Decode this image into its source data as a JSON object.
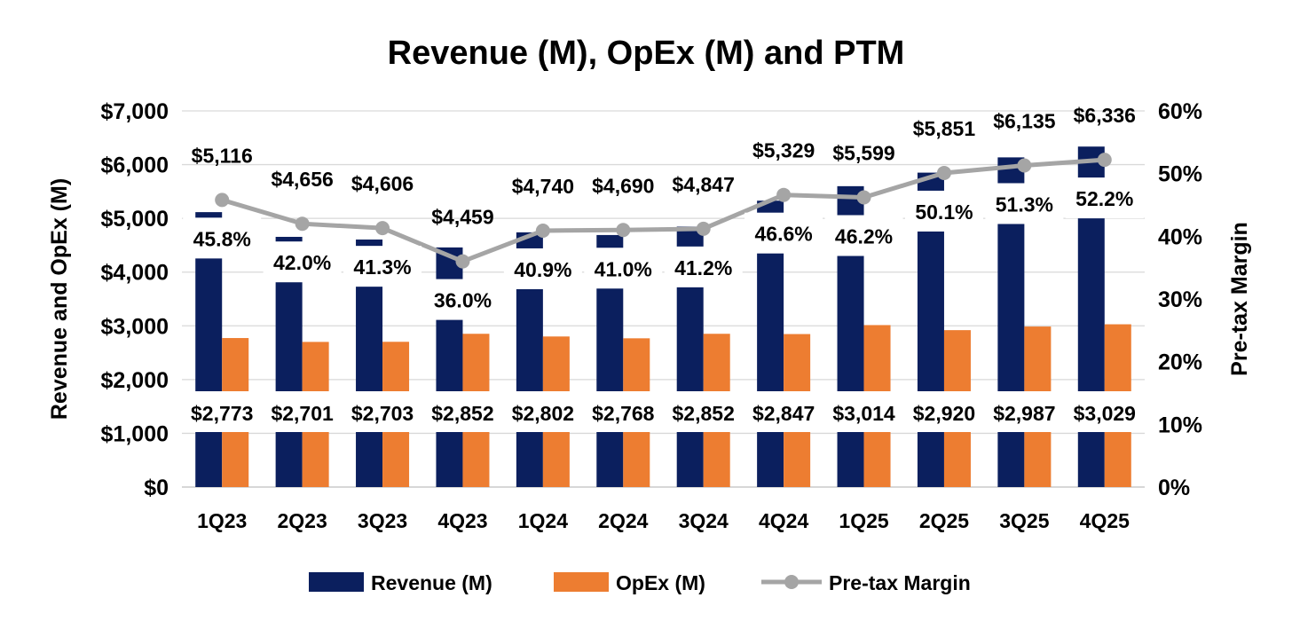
{
  "chart_data": {
    "type": "bar",
    "title": "Revenue (M), OpEx (M) and PTM",
    "ylabel": "Revenue and OpEx (M)",
    "y2label": "Pre-tax Margin",
    "ylim": [
      0,
      7000
    ],
    "y2lim": [
      0,
      60
    ],
    "yticks": [
      "$0",
      "$1,000",
      "$2,000",
      "$3,000",
      "$4,000",
      "$5,000",
      "$6,000",
      "$7,000"
    ],
    "y2ticks": [
      "0%",
      "10%",
      "20%",
      "30%",
      "40%",
      "50%",
      "60%"
    ],
    "grid": true,
    "legend_position": "bottom",
    "categories": [
      "1Q23",
      "2Q23",
      "3Q23",
      "4Q23",
      "1Q24",
      "2Q24",
      "3Q24",
      "4Q24",
      "1Q25",
      "2Q25",
      "3Q25",
      "4Q25"
    ],
    "series": [
      {
        "name": "Revenue (M)",
        "kind": "bar",
        "color": "#0B1F5E",
        "values": [
          5116,
          4656,
          4606,
          4459,
          4740,
          4690,
          4847,
          5329,
          5599,
          5851,
          6135,
          6336
        ],
        "labels": [
          "$5,116",
          "$4,656",
          "$4,606",
          "$4,459",
          "$4,740",
          "$4,690",
          "$4,847",
          "$5,329",
          "$5,599",
          "$5,851",
          "$6,135",
          "$6,336"
        ]
      },
      {
        "name": "OpEx (M)",
        "kind": "bar",
        "color": "#ED7D31",
        "values": [
          2773,
          2701,
          2703,
          2852,
          2802,
          2768,
          2852,
          2847,
          3014,
          2920,
          2987,
          3029
        ],
        "labels": [
          "$2,773",
          "$2,701",
          "$2,703",
          "$2,852",
          "$2,802",
          "$2,768",
          "$2,852",
          "$2,847",
          "$3,014",
          "$2,920",
          "$2,987",
          "$3,029"
        ]
      },
      {
        "name": "Pre-tax Margin",
        "kind": "line",
        "axis": "right",
        "color": "#A5A5A5",
        "values": [
          45.8,
          42.0,
          41.3,
          36.0,
          40.9,
          41.0,
          41.2,
          46.6,
          46.2,
          50.1,
          51.3,
          52.2
        ],
        "labels": [
          "45.8%",
          "42.0%",
          "41.3%",
          "36.0%",
          "40.9%",
          "41.0%",
          "41.2%",
          "46.6%",
          "46.2%",
          "50.1%",
          "51.3%",
          "52.2%"
        ]
      }
    ]
  }
}
